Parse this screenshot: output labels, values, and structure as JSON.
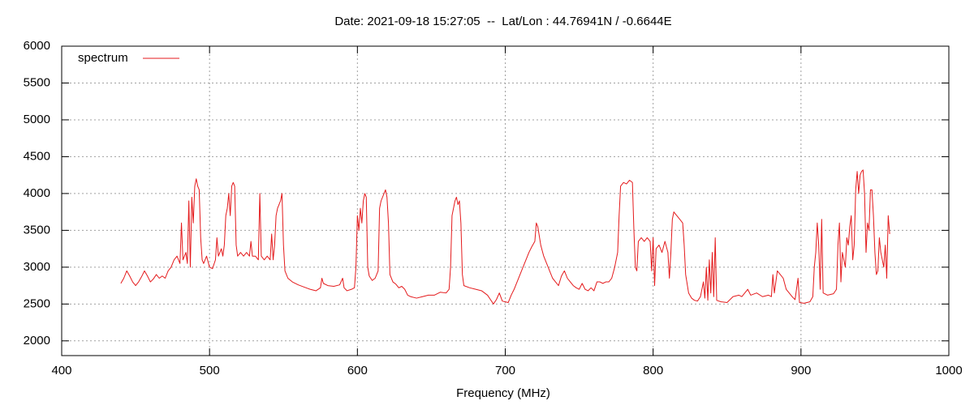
{
  "chart_data": {
    "type": "line",
    "title": "Date: 2021-09-18 15:27:05  --  Lat/Lon : 44.76941N / -0.6644E",
    "x_label": "Frequency (MHz)",
    "xlim": [
      400,
      1000
    ],
    "xticks": [
      400,
      500,
      600,
      700,
      800,
      900,
      1000
    ],
    "ylim": [
      1800,
      6000
    ],
    "yticks": [
      2000,
      2500,
      3000,
      3500,
      4000,
      4500,
      5000,
      5500,
      6000
    ],
    "grid": true,
    "legend": "top-left",
    "x": [
      440,
      442,
      444,
      446,
      448,
      450,
      452,
      454,
      456,
      458,
      460,
      462,
      464,
      466,
      468,
      470,
      472,
      474,
      476,
      478,
      480,
      481,
      482,
      484,
      485,
      486,
      487,
      488,
      489,
      490,
      491,
      492,
      493,
      494,
      495,
      496,
      498,
      500,
      502,
      504,
      505,
      506,
      508,
      509,
      510,
      511,
      512,
      513,
      514,
      515,
      516,
      517,
      518,
      519,
      521,
      523,
      525,
      527,
      528,
      529,
      531,
      533,
      534,
      535,
      537,
      539,
      541,
      542,
      543,
      544,
      545,
      546,
      547,
      548,
      549,
      550,
      551,
      553,
      556,
      560,
      564,
      568,
      572,
      575,
      576,
      577,
      580,
      584,
      588,
      590,
      591,
      593,
      596,
      598,
      599,
      600,
      601,
      602,
      603,
      604,
      605,
      606,
      607,
      608,
      610,
      612,
      614,
      615,
      616,
      618,
      619,
      620,
      621,
      622,
      624,
      626,
      628,
      630,
      632,
      634,
      636,
      640,
      644,
      648,
      652,
      656,
      660,
      662,
      663,
      664,
      666,
      667,
      668,
      669,
      670,
      671,
      672,
      676,
      680,
      684,
      688,
      690,
      692,
      694,
      696,
      698,
      700,
      702,
      704,
      706,
      708,
      710,
      712,
      714,
      716,
      718,
      720,
      721,
      722,
      724,
      726,
      728,
      730,
      732,
      734,
      736,
      738,
      740,
      742,
      744,
      746,
      748,
      750,
      752,
      754,
      756,
      758,
      760,
      762,
      764,
      766,
      768,
      770,
      772,
      774,
      776,
      777,
      778,
      780,
      782,
      784,
      786,
      787,
      788,
      789,
      790,
      792,
      794,
      796,
      798,
      799,
      800,
      801,
      802,
      804,
      806,
      808,
      810,
      811,
      812,
      813,
      814,
      816,
      818,
      820,
      821,
      822,
      824,
      826,
      828,
      830,
      832,
      834,
      835,
      836,
      837,
      838,
      839,
      840,
      841,
      842,
      843,
      846,
      850,
      854,
      858,
      860,
      862,
      864,
      866,
      870,
      874,
      878,
      880,
      881,
      882,
      884,
      886,
      888,
      890,
      892,
      894,
      896,
      898,
      899,
      902,
      906,
      908,
      909,
      910,
      911,
      912,
      913,
      914,
      915,
      918,
      922,
      924,
      925,
      926,
      927,
      928,
      929,
      930,
      931,
      932,
      933,
      934,
      935,
      936,
      937,
      938,
      939,
      940,
      941,
      942,
      943,
      944,
      945,
      946,
      947,
      948,
      949,
      950,
      951,
      952,
      953,
      954,
      956,
      957,
      958,
      959,
      960
    ],
    "series": [
      {
        "name": "spectrum",
        "color": "#e41a1c",
        "values": [
          2780,
          2850,
          2950,
          2880,
          2800,
          2750,
          2800,
          2870,
          2950,
          2880,
          2800,
          2840,
          2900,
          2850,
          2880,
          2850,
          2950,
          3000,
          3100,
          3150,
          3050,
          3600,
          3100,
          3200,
          3050,
          3900,
          3000,
          3950,
          3600,
          4100,
          4200,
          4100,
          4050,
          3400,
          3100,
          3050,
          3150,
          3000,
          2980,
          3100,
          3400,
          3150,
          3250,
          3150,
          3300,
          3700,
          3800,
          4000,
          3700,
          4100,
          4150,
          4100,
          3300,
          3150,
          3200,
          3150,
          3200,
          3150,
          3350,
          3150,
          3150,
          3100,
          4000,
          3150,
          3100,
          3150,
          3100,
          3450,
          3100,
          3300,
          3700,
          3800,
          3850,
          3900,
          4000,
          3300,
          2950,
          2850,
          2800,
          2760,
          2730,
          2700,
          2680,
          2720,
          2850,
          2780,
          2750,
          2740,
          2760,
          2850,
          2720,
          2680,
          2700,
          2720,
          3000,
          3700,
          3500,
          3800,
          3600,
          3900,
          4000,
          3950,
          3000,
          2880,
          2820,
          2850,
          2950,
          3800,
          3900,
          4000,
          4050,
          3950,
          3600,
          2900,
          2800,
          2770,
          2720,
          2740,
          2700,
          2620,
          2600,
          2580,
          2600,
          2620,
          2620,
          2660,
          2650,
          2700,
          3000,
          3700,
          3900,
          3950,
          3850,
          3900,
          3600,
          2900,
          2750,
          2720,
          2700,
          2680,
          2620,
          2560,
          2500,
          2560,
          2650,
          2540,
          2530,
          2520,
          2620,
          2700,
          2800,
          2900,
          3000,
          3100,
          3200,
          3280,
          3350,
          3600,
          3550,
          3300,
          3150,
          3050,
          2950,
          2850,
          2800,
          2750,
          2880,
          2950,
          2850,
          2800,
          2750,
          2720,
          2700,
          2780,
          2700,
          2680,
          2720,
          2680,
          2800,
          2800,
          2780,
          2800,
          2800,
          2850,
          3000,
          3200,
          3700,
          4100,
          4150,
          4130,
          4180,
          4150,
          3500,
          3000,
          2950,
          3350,
          3400,
          3350,
          3400,
          3350,
          2950,
          3400,
          2750,
          3250,
          3300,
          3200,
          3350,
          3200,
          2850,
          3200,
          3650,
          3750,
          3700,
          3650,
          3600,
          3300,
          2900,
          2650,
          2580,
          2550,
          2540,
          2600,
          2800,
          2580,
          3000,
          2550,
          3100,
          2650,
          3200,
          2600,
          3400,
          2550,
          2530,
          2520,
          2600,
          2620,
          2600,
          2650,
          2700,
          2620,
          2650,
          2600,
          2620,
          2600,
          2900,
          2650,
          2950,
          2900,
          2850,
          2700,
          2650,
          2600,
          2560,
          2850,
          2520,
          2510,
          2530,
          2600,
          3000,
          3200,
          3600,
          3300,
          2700,
          3650,
          2650,
          2620,
          2640,
          2700,
          3300,
          3600,
          2800,
          3200,
          3100,
          3000,
          3400,
          3300,
          3550,
          3700,
          3100,
          3300,
          4050,
          4300,
          4000,
          4250,
          4300,
          4320,
          4000,
          3200,
          3600,
          3500,
          4050,
          4050,
          3700,
          3200,
          2900,
          2950,
          3400,
          3200,
          3000,
          3300,
          2850,
          3700,
          3450
        ]
      }
    ]
  }
}
